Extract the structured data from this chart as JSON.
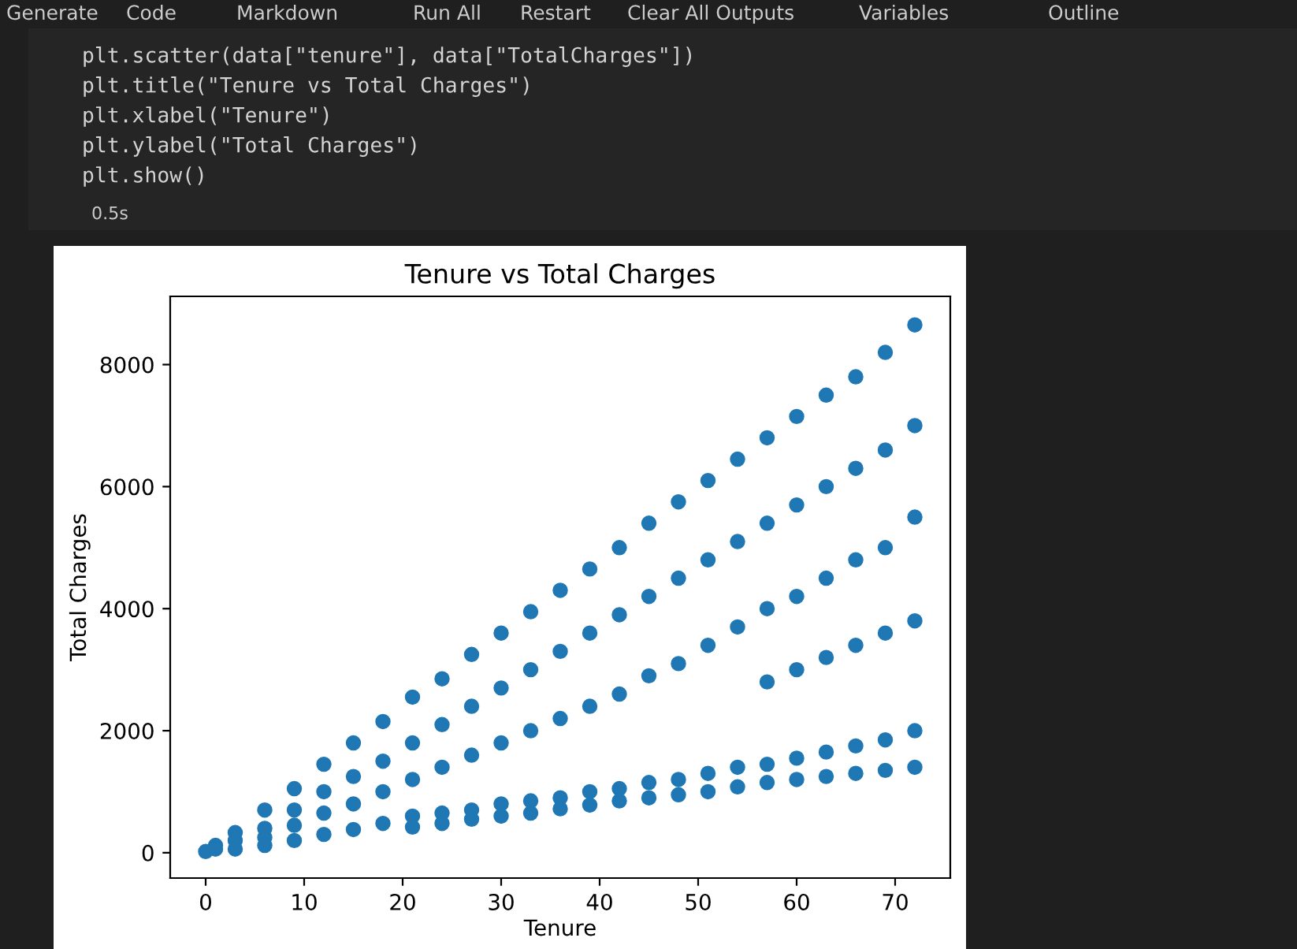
{
  "chart_data": {
    "type": "scatter",
    "title": "Tenure vs Total Charges",
    "xlabel": "Tenure",
    "ylabel": "Total Charges",
    "color": "#1f77b4",
    "marker": "circle",
    "grid": false,
    "legend": false,
    "xlim": [
      -3.6,
      75.6
    ],
    "ylim": [
      -415,
      9118
    ],
    "xticks": [
      0,
      10,
      20,
      30,
      40,
      50,
      60,
      70
    ],
    "yticks": [
      0,
      2000,
      4000,
      6000,
      8000
    ],
    "x": [
      0,
      1,
      1,
      3,
      3,
      3,
      6,
      6,
      6,
      6,
      9,
      9,
      9,
      9,
      12,
      12,
      12,
      12,
      15,
      15,
      15,
      15,
      18,
      18,
      18,
      18,
      21,
      21,
      21,
      21,
      21,
      24,
      24,
      24,
      24,
      24,
      27,
      27,
      27,
      27,
      27,
      30,
      30,
      30,
      30,
      30,
      33,
      33,
      33,
      33,
      33,
      36,
      36,
      36,
      36,
      36,
      39,
      39,
      39,
      39,
      39,
      42,
      42,
      42,
      42,
      42,
      45,
      45,
      45,
      45,
      45,
      48,
      48,
      48,
      48,
      48,
      51,
      51,
      51,
      51,
      51,
      54,
      54,
      54,
      54,
      54,
      57,
      57,
      57,
      57,
      57,
      57,
      60,
      60,
      60,
      60,
      60,
      60,
      63,
      63,
      63,
      63,
      63,
      63,
      66,
      66,
      66,
      66,
      66,
      66,
      69,
      69,
      69,
      69,
      69,
      69,
      72,
      72,
      72,
      72,
      72,
      72
    ],
    "values": [
      20,
      120,
      60,
      330,
      200,
      60,
      700,
      400,
      250,
      120,
      1050,
      700,
      450,
      200,
      1450,
      1000,
      650,
      300,
      1800,
      1250,
      800,
      380,
      2150,
      1500,
      1000,
      480,
      2550,
      1800,
      1200,
      600,
      420,
      2850,
      2100,
      1400,
      650,
      480,
      3250,
      2400,
      1600,
      700,
      550,
      3600,
      2700,
      1800,
      800,
      600,
      3950,
      3000,
      2000,
      850,
      650,
      4300,
      3300,
      2200,
      900,
      720,
      4650,
      3600,
      2400,
      1000,
      780,
      5000,
      3900,
      2600,
      1050,
      850,
      5400,
      4200,
      2900,
      1150,
      900,
      5750,
      4500,
      3100,
      1200,
      950,
      6100,
      4800,
      3400,
      1300,
      1000,
      6450,
      5100,
      3700,
      1400,
      1080,
      6800,
      5400,
      4000,
      2800,
      1450,
      1150,
      7150,
      5700,
      4200,
      3000,
      1550,
      1200,
      7500,
      6000,
      4500,
      3200,
      1650,
      1250,
      7800,
      6300,
      4800,
      3400,
      1750,
      1300,
      8200,
      6600,
      5000,
      3600,
      1850,
      1350,
      8650,
      7000,
      5500,
      3800,
      2000,
      1400
    ],
    "annotations": [
      "Generate",
      "Code",
      "Markdown",
      "Run All",
      "Restart",
      "Clear All Outputs",
      "Variables",
      "Outline",
      "plt.scatter(data[\"tenure\"], data[\"TotalCharges\"])",
      "plt.title(\"Tenure vs Total Charges\")",
      "plt.xlabel(\"Tenure\")",
      "plt.ylabel(\"Total Charges\")",
      "plt.show()",
      "0.5s"
    ]
  }
}
